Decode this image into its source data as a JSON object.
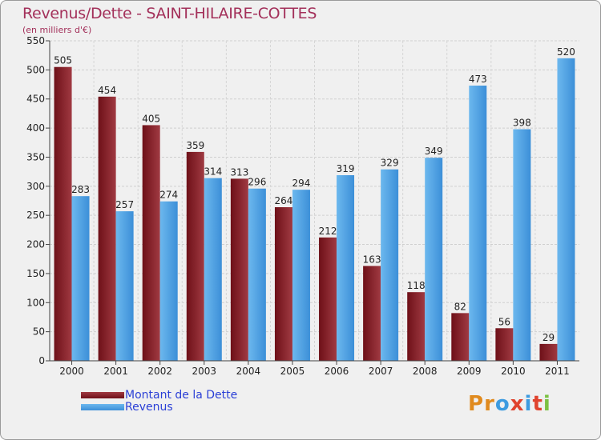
{
  "header": {
    "title": "Revenus/Dette - SAINT-HILAIRE-COTTES",
    "subtitle": "(en milliers d'€)"
  },
  "logo": {
    "text": "Proxiti"
  },
  "colors": {
    "dette": "#6e1018",
    "dette_light": "#a03a42",
    "revenus": "#3c8fd8",
    "revenus_light": "#6cb8ee",
    "title": "#a3305a"
  },
  "chart_data": {
    "type": "bar",
    "title": "Revenus/Dette - SAINT-HILAIRE-COTTES",
    "ylabel": "(en milliers d'€)",
    "xlabel": "",
    "categories": [
      "2000",
      "2001",
      "2002",
      "2003",
      "2004",
      "2005",
      "2006",
      "2007",
      "2008",
      "2009",
      "2010",
      "2011"
    ],
    "series": [
      {
        "name": "Montant de la Dette",
        "values": [
          505,
          454,
          405,
          359,
          313,
          264,
          212,
          163,
          118,
          82,
          56,
          29
        ]
      },
      {
        "name": "Revenus",
        "values": [
          283,
          257,
          274,
          314,
          296,
          294,
          319,
          329,
          349,
          473,
          398,
          520
        ]
      }
    ],
    "ylim": [
      0,
      550
    ],
    "yticks": [
      0,
      50,
      100,
      150,
      200,
      250,
      300,
      350,
      400,
      450,
      500,
      550
    ],
    "grid": true,
    "legend_position": "bottom-left"
  }
}
